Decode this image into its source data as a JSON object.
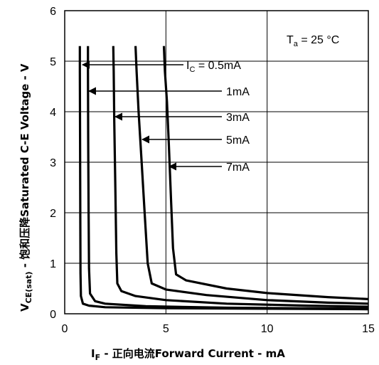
{
  "chart_data": {
    "type": "line",
    "xlabel": {
      "prefix": "I",
      "sub": "F",
      "text": " - 正向电流Forward Current - mA"
    },
    "ylabel": {
      "prefix": "V",
      "sub": "CE(sat)",
      "text": " - 饱和压降Saturated C-E  Voltage - V"
    },
    "xlim": [
      0,
      15
    ],
    "ylim": [
      0,
      6
    ],
    "xticks": [
      0,
      5,
      10,
      15
    ],
    "yticks": [
      0,
      1,
      2,
      3,
      4,
      5,
      6
    ],
    "grid": true,
    "annotation": {
      "prefix": "T",
      "sub": "a",
      "text": " = 25 °C"
    },
    "series": [
      {
        "name": "0.5mA",
        "label_prefix": "I",
        "label_sub": "C",
        "label_text": " = 0.5mA",
        "points": [
          [
            0.75,
            5.3
          ],
          [
            0.75,
            4.8
          ],
          [
            0.76,
            3.5
          ],
          [
            0.77,
            2.0
          ],
          [
            0.78,
            0.8
          ],
          [
            0.8,
            0.35
          ],
          [
            0.9,
            0.2
          ],
          [
            1.2,
            0.16
          ],
          [
            2,
            0.13
          ],
          [
            5,
            0.11
          ],
          [
            10,
            0.1
          ],
          [
            15,
            0.09
          ]
        ]
      },
      {
        "name": "1mA",
        "label_text": "1mA",
        "points": [
          [
            1.15,
            5.3
          ],
          [
            1.15,
            4.8
          ],
          [
            1.16,
            3.5
          ],
          [
            1.18,
            2.0
          ],
          [
            1.2,
            0.9
          ],
          [
            1.25,
            0.4
          ],
          [
            1.5,
            0.25
          ],
          [
            2,
            0.2
          ],
          [
            4,
            0.15
          ],
          [
            8,
            0.12
          ],
          [
            15,
            0.1
          ]
        ]
      },
      {
        "name": "3mA",
        "label_text": "3mA",
        "points": [
          [
            2.4,
            5.3
          ],
          [
            2.42,
            4.8
          ],
          [
            2.45,
            3.8
          ],
          [
            2.5,
            2.5
          ],
          [
            2.55,
            1.2
          ],
          [
            2.6,
            0.6
          ],
          [
            2.8,
            0.45
          ],
          [
            3.5,
            0.35
          ],
          [
            5,
            0.27
          ],
          [
            8,
            0.2
          ],
          [
            12,
            0.16
          ],
          [
            15,
            0.14
          ]
        ]
      },
      {
        "name": "5mA",
        "label_text": "5mA",
        "points": [
          [
            3.5,
            5.3
          ],
          [
            3.55,
            4.8
          ],
          [
            3.65,
            4.0
          ],
          [
            3.8,
            3.0
          ],
          [
            3.95,
            2.0
          ],
          [
            4.1,
            1.0
          ],
          [
            4.3,
            0.6
          ],
          [
            5,
            0.48
          ],
          [
            7,
            0.37
          ],
          [
            10,
            0.27
          ],
          [
            13,
            0.22
          ],
          [
            15,
            0.2
          ]
        ]
      },
      {
        "name": "7mA",
        "label_text": "7mA",
        "points": [
          [
            4.9,
            5.3
          ],
          [
            4.95,
            4.8
          ],
          [
            5.05,
            4.2
          ],
          [
            5.15,
            3.3
          ],
          [
            5.25,
            2.3
          ],
          [
            5.35,
            1.3
          ],
          [
            5.5,
            0.78
          ],
          [
            6,
            0.66
          ],
          [
            8,
            0.5
          ],
          [
            10,
            0.41
          ],
          [
            13,
            0.33
          ],
          [
            15,
            0.29
          ]
        ]
      }
    ]
  }
}
